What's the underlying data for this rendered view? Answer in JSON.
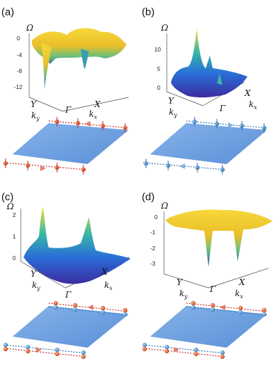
{
  "figure": {
    "panels": [
      {
        "label": "(a)",
        "omega_label": "Ω",
        "ticks": [
          "0",
          "-4",
          "-8",
          "-12"
        ],
        "x_label": "X",
        "y_label": "Y",
        "ky_label": "k",
        "ky_sub": "y",
        "kx_label": "k",
        "kx_sub": "x",
        "gamma_label": "Γ",
        "surface_colors": [
          "#e6d33a",
          "#f2c92b",
          "#4fc08d",
          "#2a5fa8"
        ],
        "edge_spin_colors": [
          "#c4262a",
          "#c4262a"
        ]
      },
      {
        "label": "(b)",
        "omega_label": "Ω",
        "ticks": [
          "10",
          "5",
          "0"
        ],
        "x_label": "X",
        "y_label": "Y",
        "ky_label": "k",
        "ky_sub": "y",
        "kx_label": "k",
        "kx_sub": "x",
        "gamma_label": "Γ",
        "surface_colors": [
          "#3e2fa8",
          "#2d6fd6",
          "#3fbf9a",
          "#e6d33a"
        ],
        "edge_spin_colors": [
          "#2f7fbf",
          "#2f7fbf"
        ]
      },
      {
        "label": "(c)",
        "omega_label": "Ω",
        "ticks": [
          "2",
          "1",
          "0"
        ],
        "x_label": "X",
        "y_label": "Y",
        "ky_label": "k",
        "ky_sub": "y",
        "kx_label": "k",
        "kx_sub": "x",
        "gamma_label": "Γ",
        "surface_colors": [
          "#3e2fa8",
          "#2d6fd6",
          "#3fbf9a",
          "#e6d33a"
        ],
        "edge_spin_colors": [
          "#c4262a",
          "#2f7fbf"
        ]
      },
      {
        "label": "(d)",
        "omega_label": "Ω",
        "ticks": [
          "0",
          "-1",
          "-2",
          "-3"
        ],
        "x_label": "X",
        "y_label": "Y",
        "ky_label": "k",
        "ky_sub": "y",
        "kx_label": "k",
        "kx_sub": "x",
        "gamma_label": "Γ",
        "surface_colors": [
          "#e6d33a",
          "#f2c92b",
          "#4fc08d",
          "#2a5fa8"
        ],
        "edge_spin_colors": [
          "#c4262a",
          "#2f7fbf"
        ]
      }
    ],
    "slab_color": "#6a9de0",
    "edge_line_colors": {
      "red": "#c0282c",
      "blue": "#2c6fb4"
    }
  }
}
